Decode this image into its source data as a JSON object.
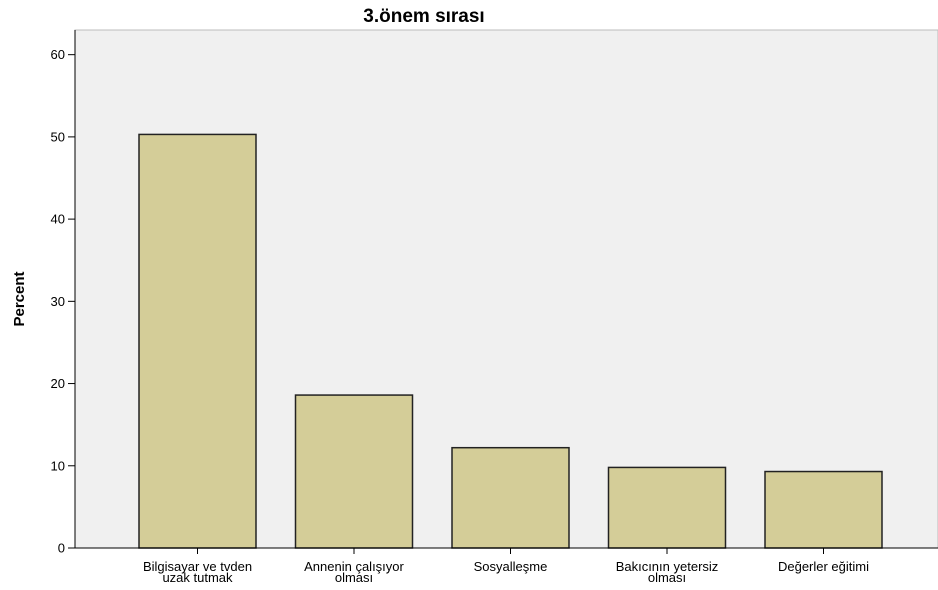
{
  "chart_data": {
    "type": "bar",
    "title": "3.önem sırası",
    "xlabel": "",
    "ylabel": "Percent",
    "ylim": [
      0,
      63
    ],
    "yticks": [
      0,
      10,
      20,
      30,
      40,
      50,
      60
    ],
    "grid": false,
    "categories": [
      [
        "Bilgisayar ve tvden",
        "uzak tutmak"
      ],
      [
        "Annenin çalışıyor",
        "olması"
      ],
      [
        "Sosyalleşme"
      ],
      [
        "Bakıcının yetersiz",
        "olması"
      ],
      [
        "Değerler eğitimi"
      ]
    ],
    "values": [
      50.3,
      18.6,
      12.2,
      9.8,
      9.3
    ],
    "colors": {
      "bar_fill": "#d4cd98",
      "bar_stroke": "#222222",
      "plot_background": "#f0f0f0",
      "axis": "#000000"
    }
  }
}
